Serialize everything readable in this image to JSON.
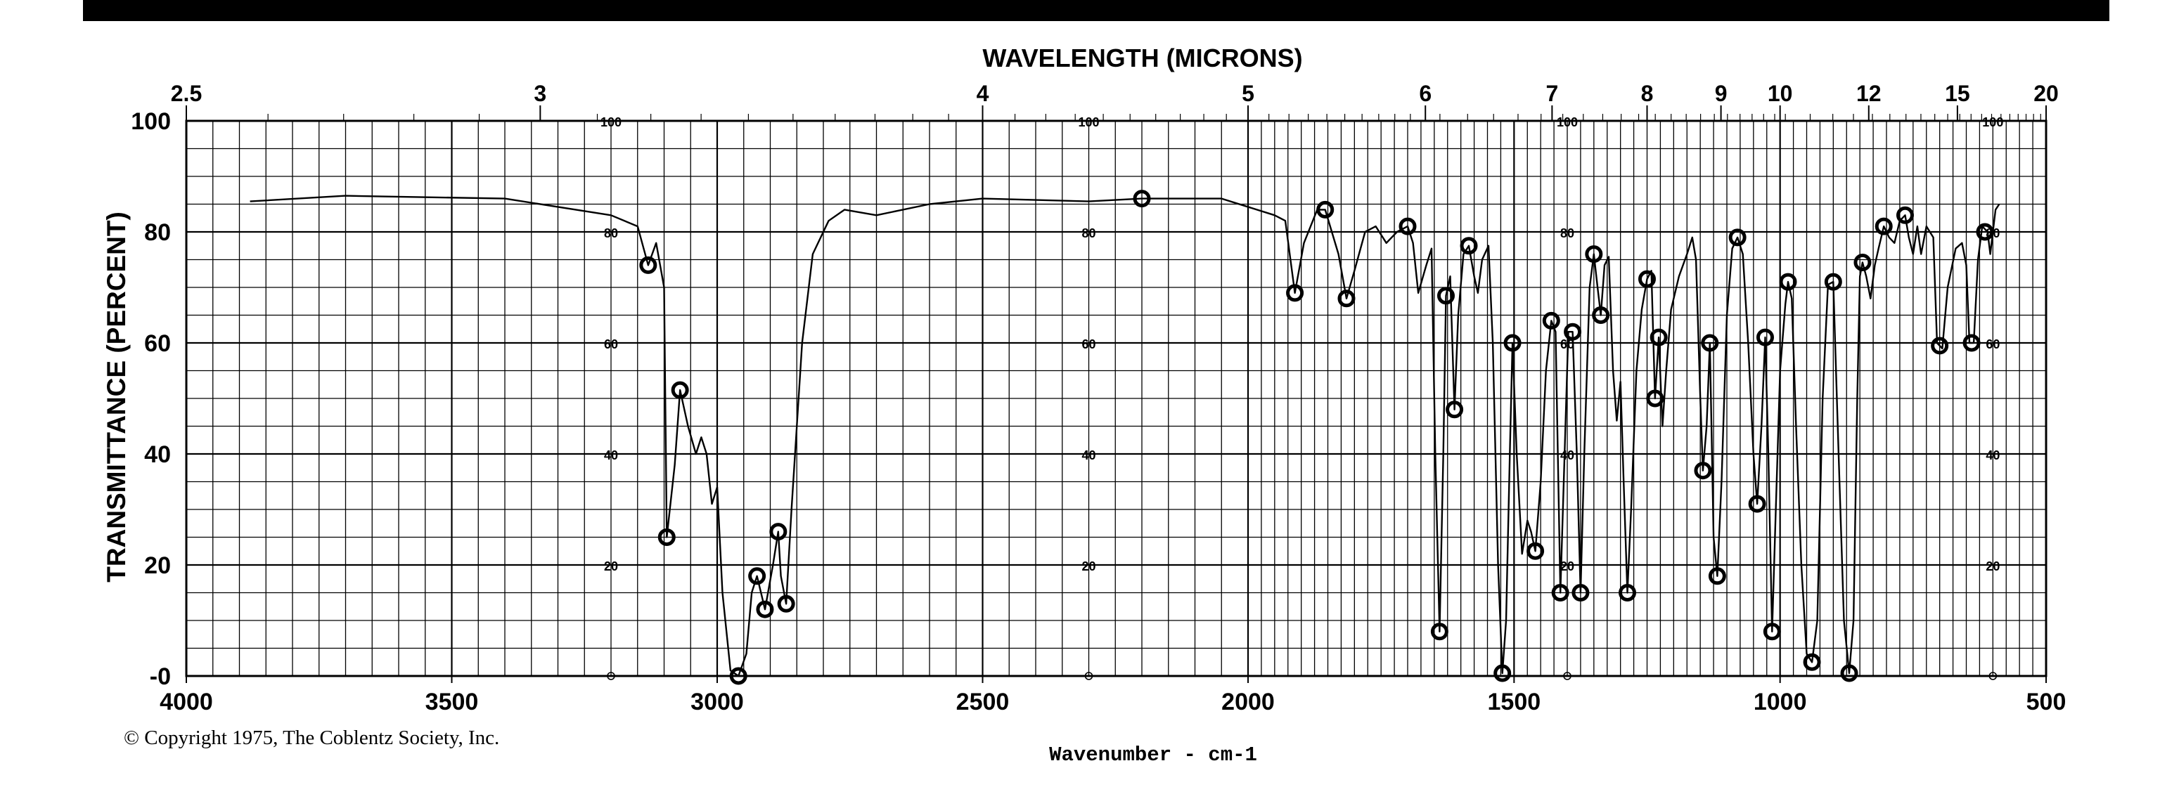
{
  "chart_data": {
    "type": "line",
    "title": "",
    "top_axis_label": "WAVELENGTH (MICRONS)",
    "top_axis_ticks": [
      "2.5",
      "3",
      "4",
      "5",
      "6",
      "7",
      "8",
      "9",
      "10",
      "12",
      "15",
      "20"
    ],
    "top_axis_tick_values": [
      2.5,
      3,
      4,
      5,
      6,
      7,
      8,
      9,
      10,
      12,
      15,
      20
    ],
    "xlabel": "Wavenumber - cm-1",
    "ylabel": "TRANSMITTANCE (PERCENT)",
    "x_ticks": [
      "4000",
      "3500",
      "3000",
      "2500",
      "2000",
      "1500",
      "1000",
      "500"
    ],
    "x_tick_values": [
      4000,
      3500,
      3000,
      2500,
      2000,
      1500,
      1000,
      500
    ],
    "y_ticks": [
      "100",
      "80",
      "60",
      "40",
      "20",
      "-0"
    ],
    "y_tick_values": [
      100,
      80,
      60,
      40,
      20,
      0
    ],
    "inner_scale_labels": [
      "100",
      "80",
      "60",
      "40",
      "20",
      "0"
    ],
    "inner_scale_values": [
      100,
      80,
      60,
      40,
      20,
      0
    ],
    "inner_scale_positions": [
      3200,
      2300,
      1400,
      600
    ],
    "xlim": [
      4000,
      500
    ],
    "ylim": [
      0,
      100
    ],
    "grid": true,
    "series": [
      {
        "values": [
          [
            3880,
            85.5
          ],
          [
            3700,
            86.5
          ],
          [
            3400,
            86.0
          ],
          [
            3200,
            83.0
          ],
          [
            3150,
            81.0
          ],
          [
            3130,
            74.0
          ],
          [
            3115,
            78.0
          ],
          [
            3100,
            70.0
          ],
          [
            3095,
            25.0
          ],
          [
            3080,
            38.0
          ],
          [
            3070,
            51.5
          ],
          [
            3055,
            45.0
          ],
          [
            3040,
            40.0
          ],
          [
            3030,
            43.0
          ],
          [
            3020,
            40.0
          ],
          [
            3010,
            31.0
          ],
          [
            3000,
            34.0
          ],
          [
            2990,
            15.0
          ],
          [
            2975,
            1.0
          ],
          [
            2960,
            0.0
          ],
          [
            2945,
            4.0
          ],
          [
            2935,
            15.0
          ],
          [
            2925,
            18.0
          ],
          [
            2910,
            12.0
          ],
          [
            2895,
            20.0
          ],
          [
            2885,
            26.0
          ],
          [
            2880,
            18.0
          ],
          [
            2870,
            13.0
          ],
          [
            2860,
            30.0
          ],
          [
            2840,
            60.0
          ],
          [
            2820,
            76.0
          ],
          [
            2805,
            79.0
          ],
          [
            2790,
            82.0
          ],
          [
            2760,
            84.0
          ],
          [
            2700,
            83.0
          ],
          [
            2600,
            85.0
          ],
          [
            2500,
            86.0
          ],
          [
            2300,
            85.5
          ],
          [
            2200,
            86.0
          ],
          [
            2050,
            86.0
          ],
          [
            1950,
            83.0
          ],
          [
            1930,
            82.0
          ],
          [
            1912,
            69.0
          ],
          [
            1895,
            78.0
          ],
          [
            1870,
            84.0
          ],
          [
            1855,
            84.0
          ],
          [
            1830,
            76.0
          ],
          [
            1815,
            68.0
          ],
          [
            1800,
            73.0
          ],
          [
            1780,
            80.0
          ],
          [
            1760,
            81.0
          ],
          [
            1740,
            78.0
          ],
          [
            1720,
            80.0
          ],
          [
            1700,
            81.0
          ],
          [
            1690,
            78.0
          ],
          [
            1680,
            69.0
          ],
          [
            1665,
            74.0
          ],
          [
            1655,
            77.0
          ],
          [
            1648,
            40.0
          ],
          [
            1640,
            8.0
          ],
          [
            1633,
            40.0
          ],
          [
            1628,
            68.5
          ],
          [
            1620,
            72.0
          ],
          [
            1612,
            48.0
          ],
          [
            1605,
            65.0
          ],
          [
            1595,
            76.0
          ],
          [
            1585,
            77.5
          ],
          [
            1575,
            72.0
          ],
          [
            1568,
            69.0
          ],
          [
            1560,
            75.0
          ],
          [
            1548,
            77.5
          ],
          [
            1540,
            60.0
          ],
          [
            1530,
            20.0
          ],
          [
            1522,
            0.5
          ],
          [
            1515,
            10.0
          ],
          [
            1508,
            40.0
          ],
          [
            1503,
            60.0
          ],
          [
            1495,
            40.0
          ],
          [
            1485,
            22.0
          ],
          [
            1475,
            28.0
          ],
          [
            1468,
            26.0
          ],
          [
            1460,
            22.5
          ],
          [
            1450,
            35.0
          ],
          [
            1440,
            55.0
          ],
          [
            1430,
            64.0
          ],
          [
            1422,
            62.0
          ],
          [
            1413,
            15.0
          ],
          [
            1405,
            40.0
          ],
          [
            1398,
            62.0
          ],
          [
            1390,
            62.0
          ],
          [
            1382,
            40.0
          ],
          [
            1375,
            15.0
          ],
          [
            1368,
            40.0
          ],
          [
            1358,
            70.0
          ],
          [
            1350,
            76.0
          ],
          [
            1343,
            70.0
          ],
          [
            1337,
            65.0
          ],
          [
            1330,
            74.0
          ],
          [
            1322,
            75.5
          ],
          [
            1314,
            55.0
          ],
          [
            1307,
            46.0
          ],
          [
            1300,
            53.0
          ],
          [
            1294,
            35.0
          ],
          [
            1287,
            15.0
          ],
          [
            1280,
            30.0
          ],
          [
            1270,
            55.0
          ],
          [
            1260,
            66.0
          ],
          [
            1250,
            71.5
          ],
          [
            1242,
            73.0
          ],
          [
            1235,
            50.0
          ],
          [
            1228,
            61.0
          ],
          [
            1221,
            45.0
          ],
          [
            1214,
            55.0
          ],
          [
            1205,
            66.0
          ],
          [
            1190,
            72.0
          ],
          [
            1175,
            76.0
          ],
          [
            1165,
            79.0
          ],
          [
            1158,
            75.0
          ],
          [
            1150,
            50.0
          ],
          [
            1145,
            37.0
          ],
          [
            1138,
            45.0
          ],
          [
            1132,
            60.0
          ],
          [
            1125,
            25.0
          ],
          [
            1118,
            18.0
          ],
          [
            1110,
            35.0
          ],
          [
            1100,
            65.0
          ],
          [
            1090,
            77.0
          ],
          [
            1080,
            79.0
          ],
          [
            1070,
            76.0
          ],
          [
            1060,
            60.0
          ],
          [
            1050,
            40.0
          ],
          [
            1043,
            31.0
          ],
          [
            1035,
            45.0
          ],
          [
            1028,
            61.0
          ],
          [
            1022,
            40.0
          ],
          [
            1015,
            8.0
          ],
          [
            1008,
            30.0
          ],
          [
            1000,
            55.0
          ],
          [
            990,
            67.0
          ],
          [
            985,
            71.0
          ],
          [
            978,
            68.0
          ],
          [
            970,
            45.0
          ],
          [
            960,
            20.0
          ],
          [
            950,
            4.0
          ],
          [
            940,
            2.5
          ],
          [
            930,
            10.0
          ],
          [
            920,
            50.0
          ],
          [
            910,
            70.5
          ],
          [
            900,
            71.0
          ],
          [
            890,
            40.0
          ],
          [
            880,
            10.0
          ],
          [
            870,
            0.5
          ],
          [
            862,
            10.0
          ],
          [
            855,
            50.0
          ],
          [
            850,
            72.0
          ],
          [
            845,
            74.5
          ],
          [
            838,
            72.0
          ],
          [
            830,
            68.0
          ],
          [
            822,
            74.0
          ],
          [
            815,
            77.0
          ],
          [
            805,
            81.0
          ],
          [
            795,
            79.0
          ],
          [
            785,
            78.0
          ],
          [
            775,
            82.0
          ],
          [
            765,
            83.0
          ],
          [
            758,
            79.0
          ],
          [
            750,
            76.0
          ],
          [
            742,
            81.0
          ],
          [
            735,
            76.0
          ],
          [
            725,
            81.0
          ],
          [
            712,
            79.0
          ],
          [
            705,
            60.0
          ],
          [
            695,
            59.0
          ],
          [
            685,
            70.0
          ],
          [
            670,
            77.0
          ],
          [
            658,
            78.0
          ],
          [
            650,
            74.0
          ],
          [
            644,
            60.0
          ],
          [
            636,
            60.0
          ],
          [
            628,
            75.0
          ],
          [
            620,
            81.0
          ],
          [
            610,
            80.0
          ],
          [
            605,
            76.0
          ],
          [
            595,
            84.0
          ],
          [
            588,
            85.0
          ]
        ]
      }
    ],
    "circled_points": [
      [
        3130,
        74.0
      ],
      [
        3095,
        25.0
      ],
      [
        3070,
        51.5
      ],
      [
        2960,
        0.0
      ],
      [
        2925,
        18.0
      ],
      [
        2910,
        12.0
      ],
      [
        2885,
        26.0
      ],
      [
        2870,
        13.0
      ],
      [
        2200,
        86.0
      ],
      [
        1912,
        69.0
      ],
      [
        1855,
        84.0
      ],
      [
        1815,
        68.0
      ],
      [
        1700,
        81.0
      ],
      [
        1640,
        8.0
      ],
      [
        1628,
        68.5
      ],
      [
        1612,
        48.0
      ],
      [
        1585,
        77.5
      ],
      [
        1522,
        0.5
      ],
      [
        1503,
        60.0
      ],
      [
        1460,
        22.5
      ],
      [
        1430,
        64.0
      ],
      [
        1413,
        15.0
      ],
      [
        1390,
        62.0
      ],
      [
        1375,
        15.0
      ],
      [
        1350,
        76.0
      ],
      [
        1337,
        65.0
      ],
      [
        1287,
        15.0
      ],
      [
        1250,
        71.5
      ],
      [
        1235,
        50.0
      ],
      [
        1228,
        61.0
      ],
      [
        1145,
        37.0
      ],
      [
        1132,
        60.0
      ],
      [
        1118,
        18.0
      ],
      [
        1080,
        79.0
      ],
      [
        1043,
        31.0
      ],
      [
        1028,
        61.0
      ],
      [
        1015,
        8.0
      ],
      [
        985,
        71.0
      ],
      [
        940,
        2.5
      ],
      [
        900,
        71.0
      ],
      [
        870,
        0.5
      ],
      [
        845,
        74.5
      ],
      [
        805,
        81.0
      ],
      [
        765,
        83.0
      ],
      [
        700,
        59.5
      ],
      [
        640,
        60.0
      ],
      [
        615,
        80.0
      ]
    ],
    "copyright": "© Copyright 1975, The Coblentz Society, Inc."
  }
}
